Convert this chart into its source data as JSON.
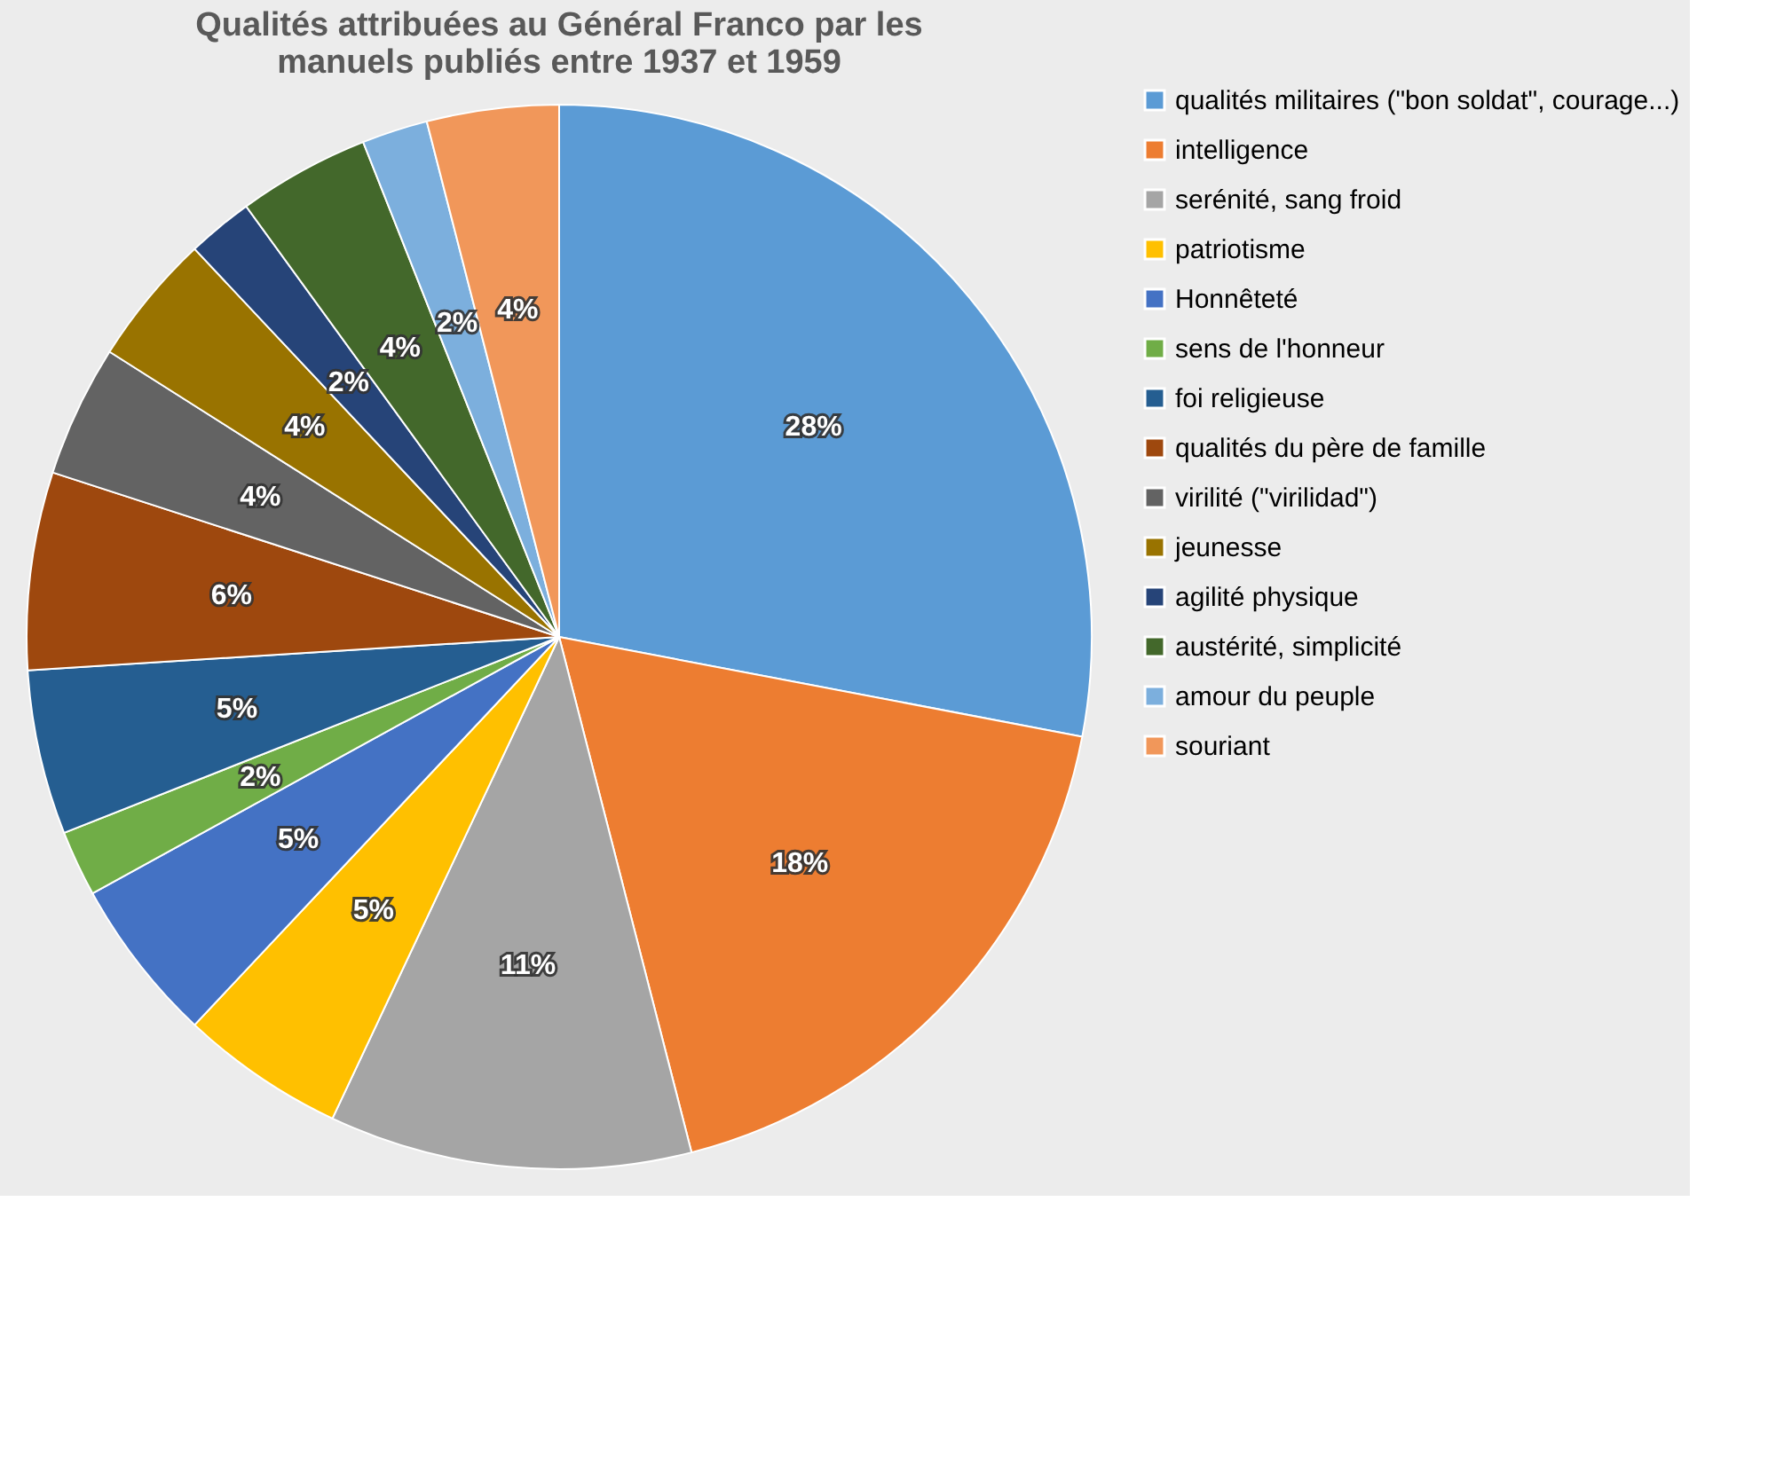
{
  "chart_data": {
    "type": "pie",
    "title": "Qualités attribuées au Général Franco par les manuels publiés entre 1937 et 1959",
    "categories": [
      "qualités militaires (\"bon soldat\", courage...)",
      "intelligence",
      "serénité, sang froid",
      "patriotisme",
      "Honnêteté",
      "sens de l'honneur",
      "foi religieuse",
      "qualités du père de famille",
      "virilité (\"virilidad\")",
      "jeunesse",
      "agilité physique",
      "austérité, simplicité",
      "amour du peuple",
      "souriant"
    ],
    "values": [
      28,
      18,
      11,
      5,
      5,
      2,
      5,
      6,
      4,
      4,
      2,
      4,
      2,
      4
    ],
    "value_labels": [
      "28%",
      "18%",
      "11%",
      "5%",
      "5%",
      "2%",
      "5%",
      "6%",
      "4%",
      "4%",
      "2%",
      "4%",
      "2%",
      "4%"
    ],
    "colors": [
      "#5b9bd5",
      "#ed7d31",
      "#a5a5a5",
      "#ffc000",
      "#4472c4",
      "#70ad47",
      "#255e91",
      "#9e480e",
      "#636363",
      "#997300",
      "#264478",
      "#43682b",
      "#7cafdd",
      "#f1975a"
    ],
    "legend": "right"
  }
}
